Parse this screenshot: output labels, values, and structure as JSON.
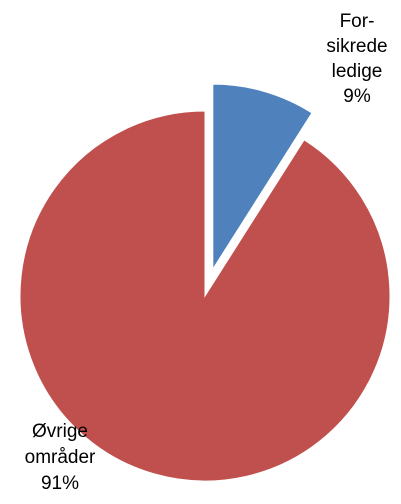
{
  "chart_data": {
    "type": "pie",
    "slices": [
      {
        "label_lines": [
          "For-",
          "sikrede",
          "ledige"
        ],
        "value": 9,
        "value_label": "9%",
        "color": "#4F81BD",
        "exploded": true
      },
      {
        "label_lines": [
          "Øvrige",
          "områder"
        ],
        "value": 91,
        "value_label": "91%",
        "color": "#C0504D",
        "exploded": false
      }
    ]
  }
}
